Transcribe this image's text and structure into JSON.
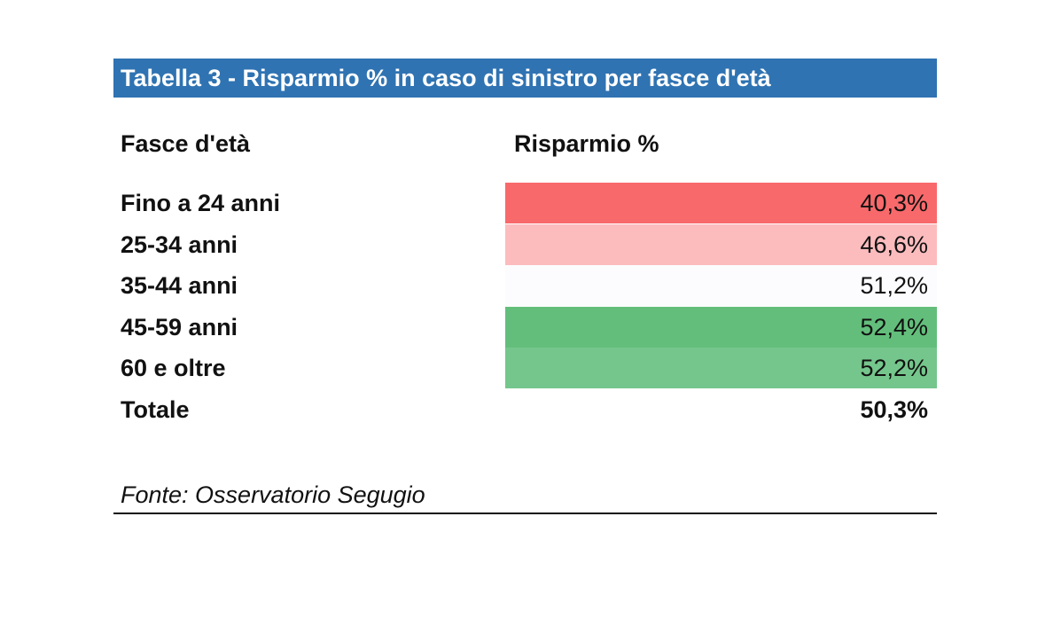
{
  "chart_data": {
    "type": "table",
    "title": "Tabella 3 - Risparmio % in caso di sinistro per fasce d'età",
    "columns": [
      "Fasce d'età",
      "Risparmio %"
    ],
    "rows": [
      {
        "label": "Fino a 24 anni",
        "value": "40,3%",
        "color": "#f8696b"
      },
      {
        "label": "25-34 anni",
        "value": "46,6%",
        "color": "#fcbcbe"
      },
      {
        "label": "35-44 anni",
        "value": "51,2%",
        "color": "#fcfcff"
      },
      {
        "label": "45-59 anni",
        "value": "52,4%",
        "color": "#63be7b"
      },
      {
        "label": "60 e oltre",
        "value": "52,2%",
        "color": "#75c68c"
      }
    ],
    "total": {
      "label": "Totale",
      "value": "50,3%"
    },
    "source": "Fonte: Osservatorio Segugio"
  },
  "colors": {
    "title_bar": "#2f73b2"
  }
}
